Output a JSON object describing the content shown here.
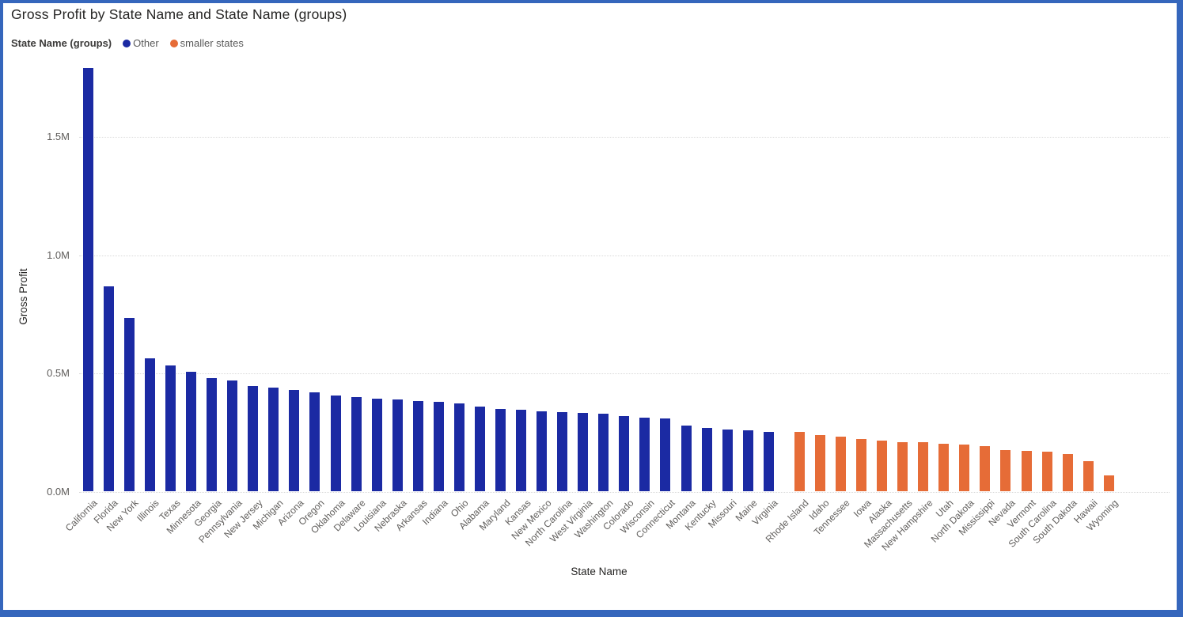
{
  "title": "Gross Profit by State Name and State Name (groups)",
  "legend": {
    "label": "State Name (groups)",
    "items": [
      {
        "name": "Other",
        "color": "#1B2AA3"
      },
      {
        "name": "smaller states",
        "color": "#E66C37"
      }
    ]
  },
  "chart_data": {
    "type": "bar",
    "title": "Gross Profit by State Name and State Name (groups)",
    "xlabel": "State Name",
    "ylabel": "Gross Profit",
    "unit": "M",
    "ylim": [
      0,
      1.8
    ],
    "grid": "dotted-horizontal",
    "legend_position": "top-left",
    "yticks": [
      {
        "value": 0.0,
        "label": "0.0M"
      },
      {
        "value": 0.5,
        "label": "0.5M"
      },
      {
        "value": 1.0,
        "label": "1.0M"
      },
      {
        "value": 1.5,
        "label": "1.5M"
      }
    ],
    "categories": [
      "California",
      "Florida",
      "New York",
      "Illinois",
      "Texas",
      "Minnesota",
      "Georgia",
      "Pennsylvania",
      "New Jersey",
      "Michigan",
      "Arizona",
      "Oregon",
      "Oklahoma",
      "Delaware",
      "Louisiana",
      "Nebraska",
      "Arkansas",
      "Indiana",
      "Ohio",
      "Alabama",
      "Maryland",
      "Kansas",
      "New Mexico",
      "North Carolina",
      "West Virginia",
      "Washington",
      "Colorado",
      "Wisconsin",
      "Connecticut",
      "Montana",
      "Kentucky",
      "Missouri",
      "Maine",
      "Virginia",
      "Rhode Island",
      "Idaho",
      "Tennessee",
      "Iowa",
      "Alaska",
      "Massachusetts",
      "New Hampshire",
      "Utah",
      "North Dakota",
      "Mississippi",
      "Nevada",
      "Vermont",
      "South Carolina",
      "South Dakota",
      "Hawaii",
      "Wyoming"
    ],
    "values": [
      1.79,
      0.868,
      0.733,
      0.565,
      0.533,
      0.507,
      0.481,
      0.47,
      0.447,
      0.441,
      0.431,
      0.421,
      0.406,
      0.401,
      0.393,
      0.388,
      0.384,
      0.381,
      0.373,
      0.358,
      0.348,
      0.345,
      0.338,
      0.335,
      0.332,
      0.328,
      0.318,
      0.314,
      0.311,
      0.28,
      0.269,
      0.262,
      0.258,
      0.254,
      0.251,
      0.24,
      0.232,
      0.223,
      0.217,
      0.209,
      0.208,
      0.203,
      0.199,
      0.193,
      0.177,
      0.173,
      0.168,
      0.158,
      0.128,
      0.069
    ],
    "groups": [
      "Other",
      "Other",
      "Other",
      "Other",
      "Other",
      "Other",
      "Other",
      "Other",
      "Other",
      "Other",
      "Other",
      "Other",
      "Other",
      "Other",
      "Other",
      "Other",
      "Other",
      "Other",
      "Other",
      "Other",
      "Other",
      "Other",
      "Other",
      "Other",
      "Other",
      "Other",
      "Other",
      "Other",
      "Other",
      "Other",
      "Other",
      "Other",
      "Other",
      "Other",
      "smaller states",
      "smaller states",
      "smaller states",
      "smaller states",
      "smaller states",
      "smaller states",
      "smaller states",
      "smaller states",
      "smaller states",
      "smaller states",
      "smaller states",
      "smaller states",
      "smaller states",
      "smaller states",
      "smaller states",
      "smaller states"
    ]
  }
}
